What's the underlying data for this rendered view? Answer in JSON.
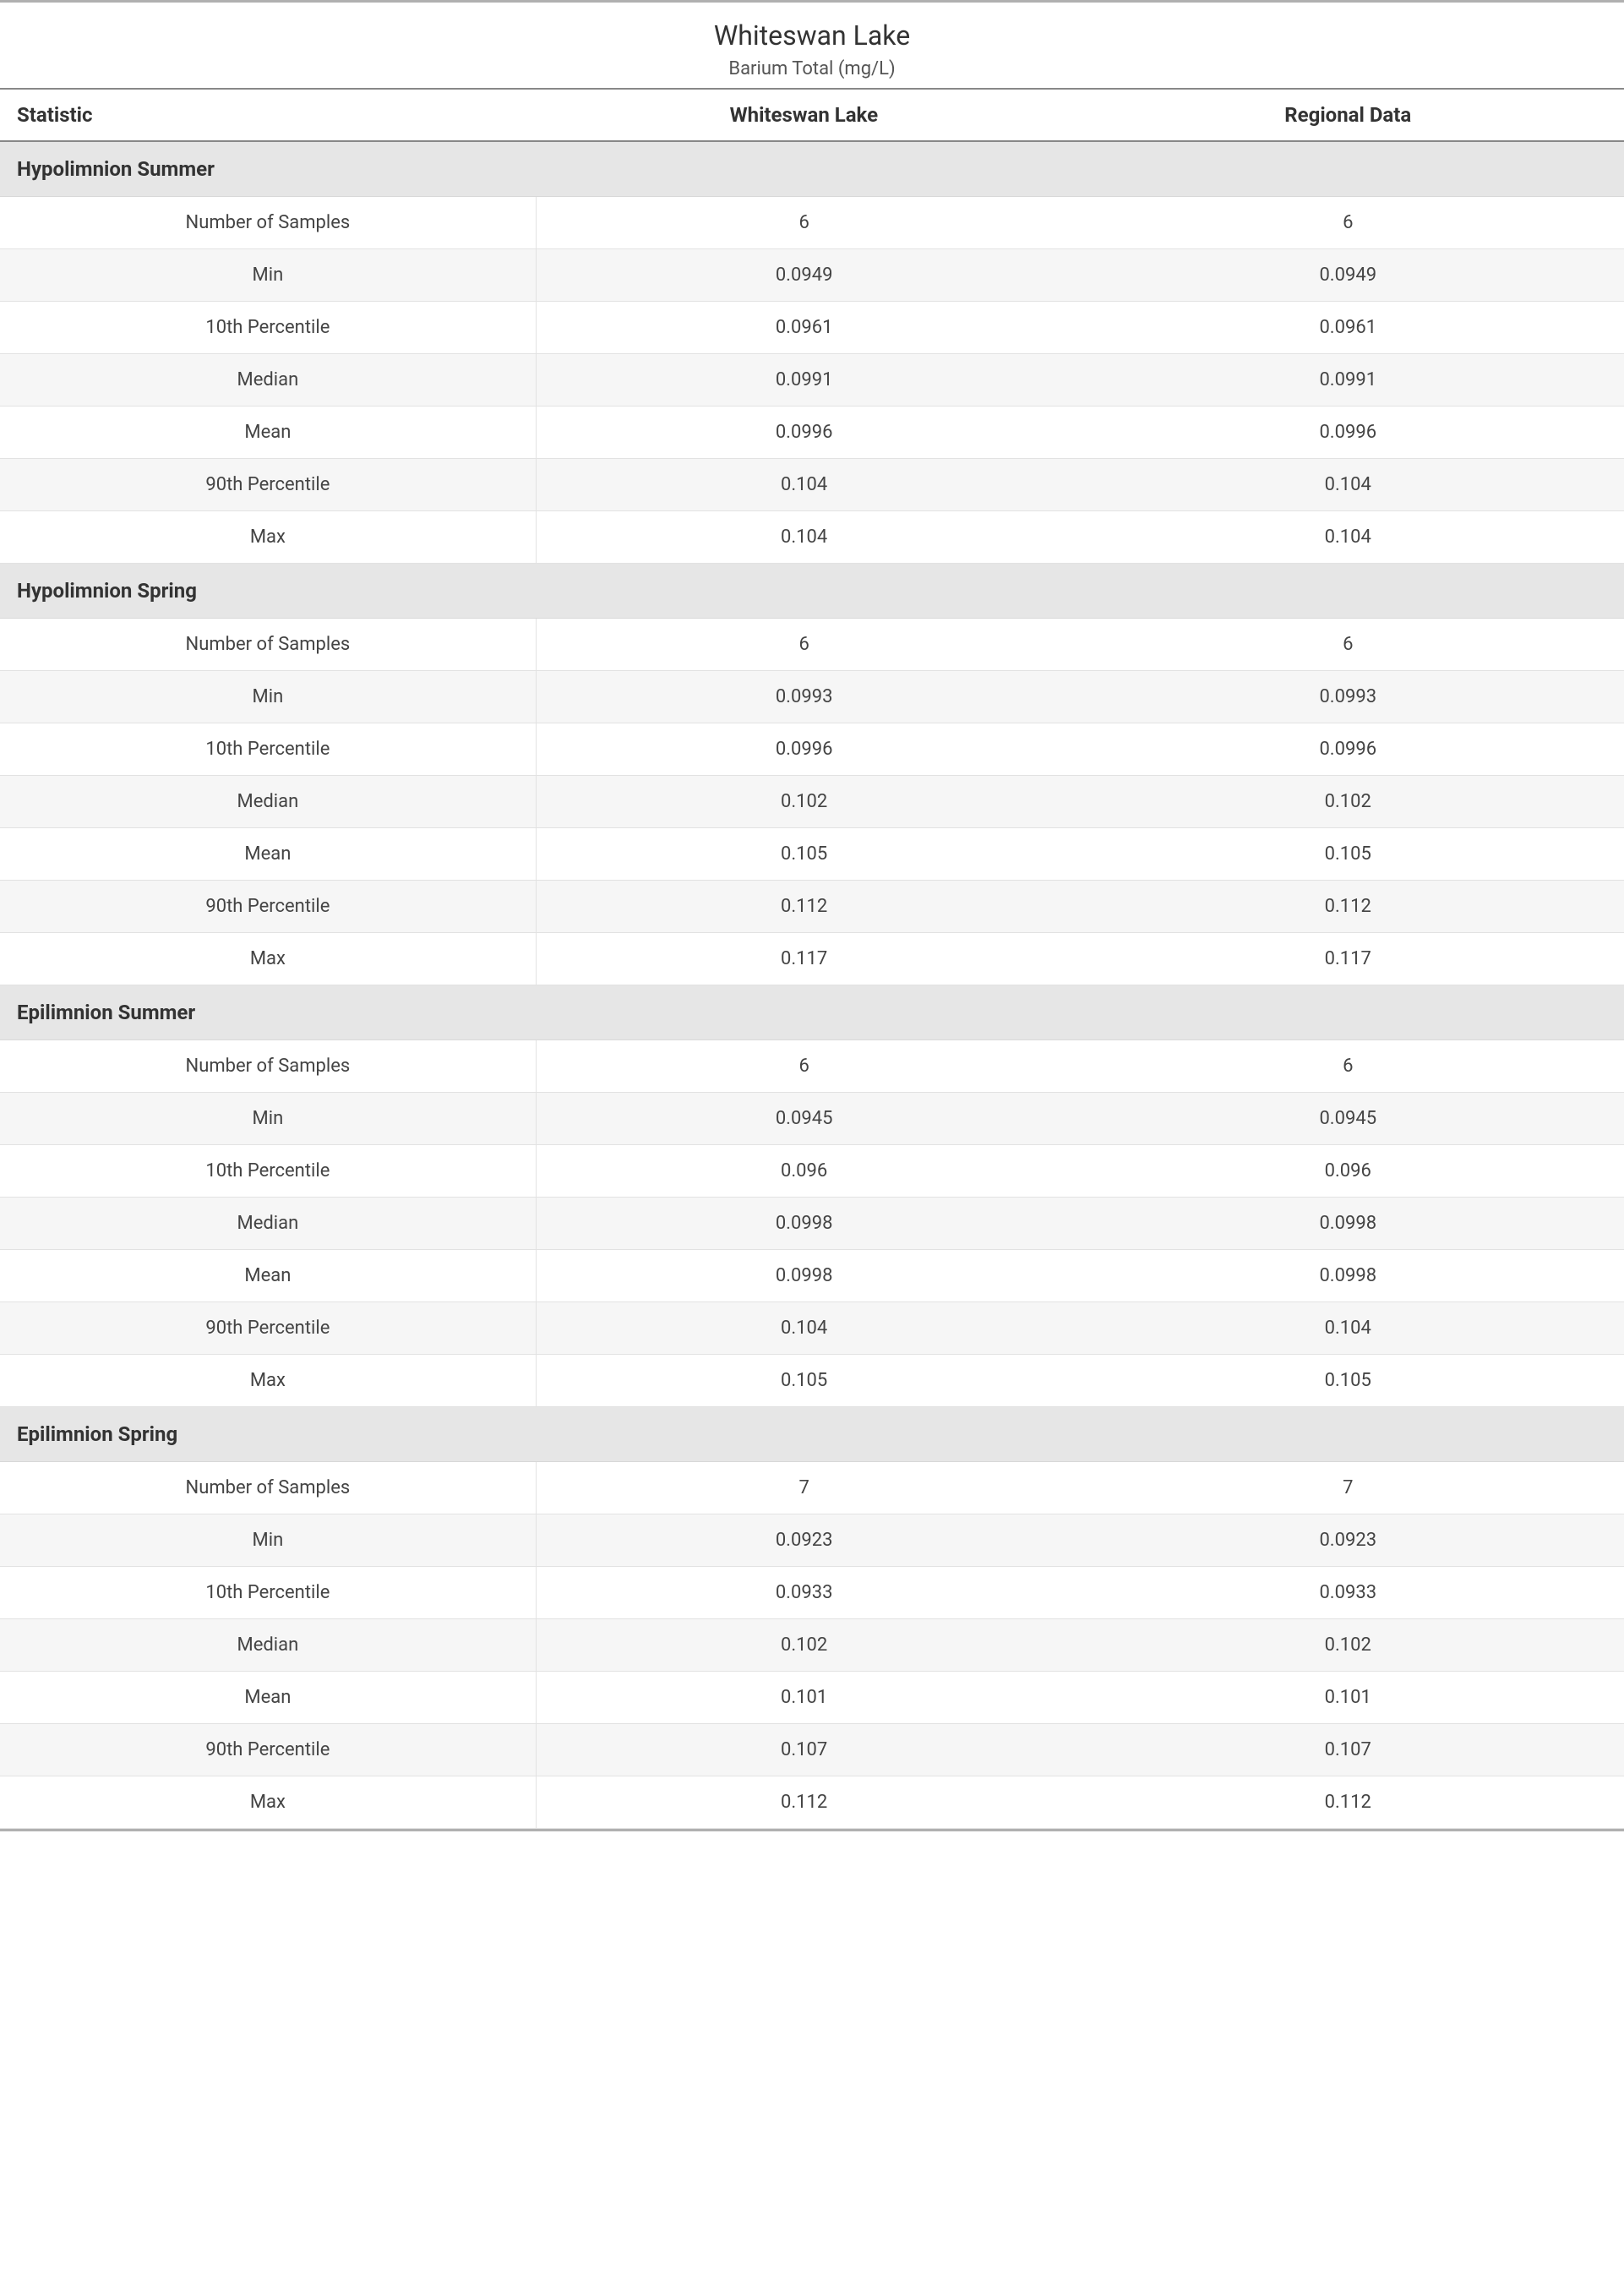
{
  "type": "table",
  "background_color": "#ffffff",
  "text_color": "#333333",
  "border_color_heavy": "#b0b0b0",
  "border_color_medium": "#888888",
  "border_color_light": "#e2e2e2",
  "group_header_bg": "#e6e6e6",
  "zebra_bg": "#f6f6f6",
  "title_fontsize": 32,
  "subtitle_fontsize": 22,
  "header_fontsize": 24,
  "cell_fontsize": 22,
  "title": "Whiteswan Lake",
  "subtitle": "Barium Total (mg/L)",
  "columns": {
    "stat": "Statistic",
    "a": "Whiteswan Lake",
    "b": "Regional Data"
  },
  "groups": [
    {
      "name": "Hypolimnion Summer",
      "rows": [
        {
          "stat": "Number of Samples",
          "a": "6",
          "b": "6"
        },
        {
          "stat": "Min",
          "a": "0.0949",
          "b": "0.0949"
        },
        {
          "stat": "10th Percentile",
          "a": "0.0961",
          "b": "0.0961"
        },
        {
          "stat": "Median",
          "a": "0.0991",
          "b": "0.0991"
        },
        {
          "stat": "Mean",
          "a": "0.0996",
          "b": "0.0996"
        },
        {
          "stat": "90th Percentile",
          "a": "0.104",
          "b": "0.104"
        },
        {
          "stat": "Max",
          "a": "0.104",
          "b": "0.104"
        }
      ]
    },
    {
      "name": "Hypolimnion Spring",
      "rows": [
        {
          "stat": "Number of Samples",
          "a": "6",
          "b": "6"
        },
        {
          "stat": "Min",
          "a": "0.0993",
          "b": "0.0993"
        },
        {
          "stat": "10th Percentile",
          "a": "0.0996",
          "b": "0.0996"
        },
        {
          "stat": "Median",
          "a": "0.102",
          "b": "0.102"
        },
        {
          "stat": "Mean",
          "a": "0.105",
          "b": "0.105"
        },
        {
          "stat": "90th Percentile",
          "a": "0.112",
          "b": "0.112"
        },
        {
          "stat": "Max",
          "a": "0.117",
          "b": "0.117"
        }
      ]
    },
    {
      "name": "Epilimnion Summer",
      "rows": [
        {
          "stat": "Number of Samples",
          "a": "6",
          "b": "6"
        },
        {
          "stat": "Min",
          "a": "0.0945",
          "b": "0.0945"
        },
        {
          "stat": "10th Percentile",
          "a": "0.096",
          "b": "0.096"
        },
        {
          "stat": "Median",
          "a": "0.0998",
          "b": "0.0998"
        },
        {
          "stat": "Mean",
          "a": "0.0998",
          "b": "0.0998"
        },
        {
          "stat": "90th Percentile",
          "a": "0.104",
          "b": "0.104"
        },
        {
          "stat": "Max",
          "a": "0.105",
          "b": "0.105"
        }
      ]
    },
    {
      "name": "Epilimnion Spring",
      "rows": [
        {
          "stat": "Number of Samples",
          "a": "7",
          "b": "7"
        },
        {
          "stat": "Min",
          "a": "0.0923",
          "b": "0.0923"
        },
        {
          "stat": "10th Percentile",
          "a": "0.0933",
          "b": "0.0933"
        },
        {
          "stat": "Median",
          "a": "0.102",
          "b": "0.102"
        },
        {
          "stat": "Mean",
          "a": "0.101",
          "b": "0.101"
        },
        {
          "stat": "90th Percentile",
          "a": "0.107",
          "b": "0.107"
        },
        {
          "stat": "Max",
          "a": "0.112",
          "b": "0.112"
        }
      ]
    }
  ]
}
